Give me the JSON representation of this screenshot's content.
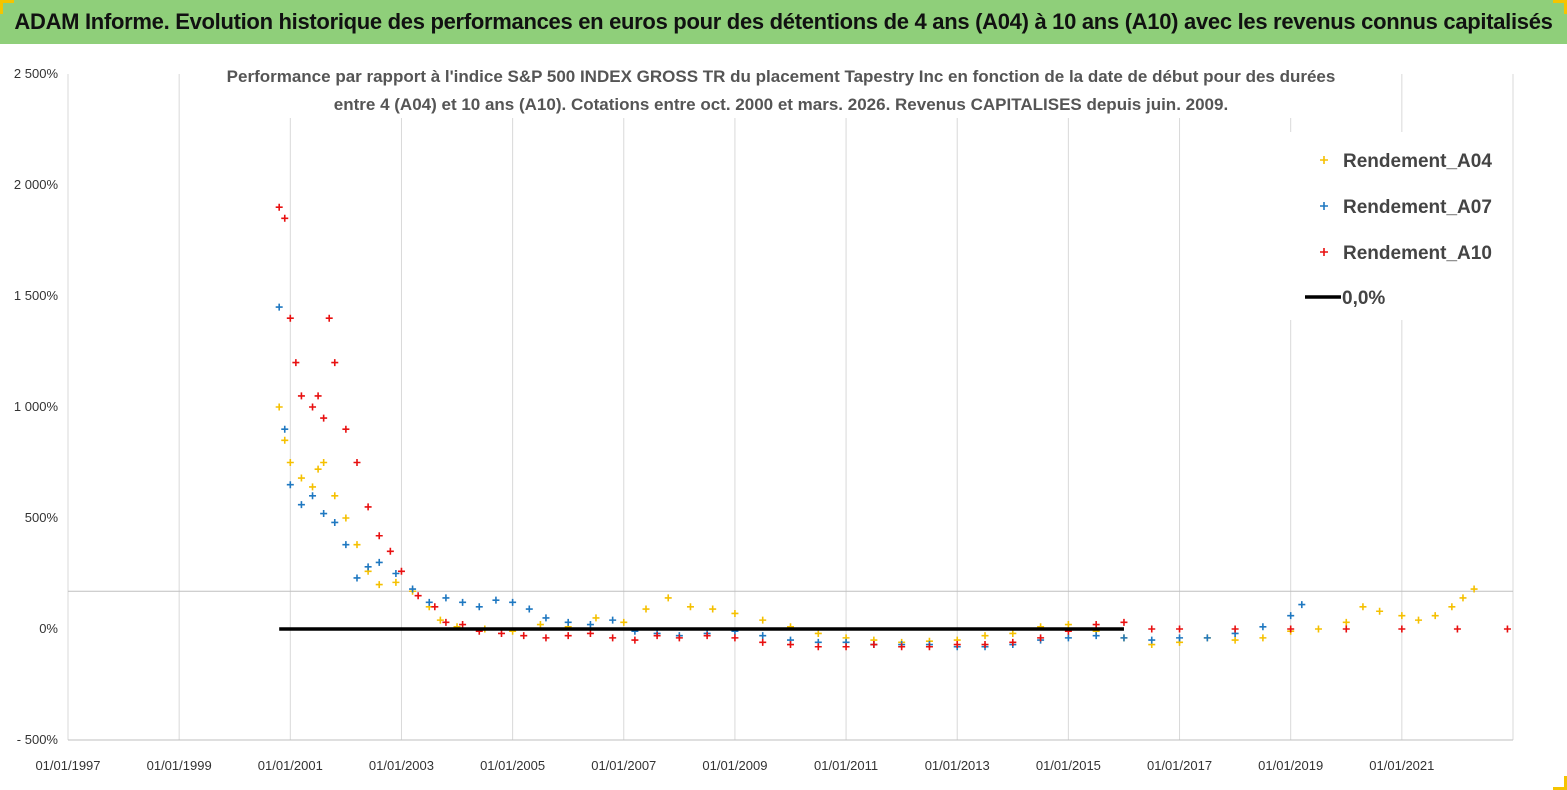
{
  "banner": {
    "title": "ADAM Informe. Evolution historique des performances en euros pour des détentions de 4 ans (A04) à 10 ans (A10) avec les revenus connus capitalisés"
  },
  "chart_data": {
    "type": "scatter",
    "title_lines": [
      "Performance par rapport à l'indice S&P 500 INDEX GROSS TR  du placement Tapestry Inc en fonction de la date de début pour des durées",
      "entre 4 (A04) et 10 ans (A10). Cotations entre oct. 2000 et mars. 2026. Revenus CAPITALISES depuis juin. 2009."
    ],
    "xlim": [
      1997.0,
      2023.0
    ],
    "ylim": [
      -500,
      2500
    ],
    "x_ticks": [
      {
        "x": 1997,
        "label": "01/01/1997"
      },
      {
        "x": 1999,
        "label": "01/01/1999"
      },
      {
        "x": 2001,
        "label": "01/01/2001"
      },
      {
        "x": 2003,
        "label": "01/01/2003"
      },
      {
        "x": 2005,
        "label": "01/01/2005"
      },
      {
        "x": 2007,
        "label": "01/01/2007"
      },
      {
        "x": 2009,
        "label": "01/01/2009"
      },
      {
        "x": 2011,
        "label": "01/01/2011"
      },
      {
        "x": 2013,
        "label": "01/01/2013"
      },
      {
        "x": 2015,
        "label": "01/01/2015"
      },
      {
        "x": 2017,
        "label": "01/01/2017"
      },
      {
        "x": 2019,
        "label": "01/01/2019"
      },
      {
        "x": 2021,
        "label": "01/01/2021"
      }
    ],
    "y_ticks": [
      {
        "y": 2500,
        "label": "2 500%"
      },
      {
        "y": 2000,
        "label": "2 000%"
      },
      {
        "y": 1500,
        "label": "1 500%"
      },
      {
        "y": 1000,
        "label": "1 000%"
      },
      {
        "y": 500,
        "label": "500%"
      },
      {
        "y": 0,
        "label": "0%"
      },
      {
        "y": -500,
        "label": "- 500%"
      }
    ],
    "grid": "vertical",
    "reference_line_y": 170,
    "legend_position": "top-right",
    "series": [
      {
        "name": "Rendement_A04",
        "color": "#f5c000",
        "marker": "plus",
        "points": [
          [
            2000.8,
            1000
          ],
          [
            2000.9,
            850
          ],
          [
            2001.0,
            750
          ],
          [
            2001.2,
            680
          ],
          [
            2001.4,
            640
          ],
          [
            2001.5,
            720
          ],
          [
            2001.6,
            750
          ],
          [
            2001.8,
            600
          ],
          [
            2002.0,
            500
          ],
          [
            2002.2,
            380
          ],
          [
            2002.4,
            260
          ],
          [
            2002.6,
            200
          ],
          [
            2002.9,
            210
          ],
          [
            2003.2,
            170
          ],
          [
            2003.5,
            100
          ],
          [
            2003.7,
            40
          ],
          [
            2004.0,
            10
          ],
          [
            2004.5,
            0
          ],
          [
            2005.0,
            -10
          ],
          [
            2005.5,
            20
          ],
          [
            2006.0,
            10
          ],
          [
            2006.5,
            50
          ],
          [
            2007.0,
            30
          ],
          [
            2007.4,
            90
          ],
          [
            2007.8,
            140
          ],
          [
            2008.2,
            100
          ],
          [
            2008.6,
            90
          ],
          [
            2009.0,
            70
          ],
          [
            2009.5,
            40
          ],
          [
            2010.0,
            10
          ],
          [
            2010.5,
            -20
          ],
          [
            2011.0,
            -40
          ],
          [
            2011.5,
            -50
          ],
          [
            2012.0,
            -60
          ],
          [
            2012.5,
            -55
          ],
          [
            2013.0,
            -50
          ],
          [
            2013.5,
            -30
          ],
          [
            2014.0,
            -20
          ],
          [
            2014.5,
            10
          ],
          [
            2015.0,
            20
          ],
          [
            2015.5,
            -10
          ],
          [
            2016.0,
            -40
          ],
          [
            2016.5,
            -70
          ],
          [
            2017.0,
            -60
          ],
          [
            2017.5,
            -40
          ],
          [
            2018.0,
            -50
          ],
          [
            2018.5,
            -40
          ],
          [
            2019.0,
            -10
          ],
          [
            2019.5,
            0
          ],
          [
            2020.0,
            30
          ],
          [
            2020.3,
            100
          ],
          [
            2020.6,
            80
          ],
          [
            2021.0,
            60
          ],
          [
            2021.3,
            40
          ],
          [
            2021.6,
            60
          ],
          [
            2021.9,
            100
          ],
          [
            2022.1,
            140
          ],
          [
            2022.3,
            180
          ]
        ]
      },
      {
        "name": "Rendement_A07",
        "color": "#1f78c1",
        "marker": "plus",
        "points": [
          [
            2000.8,
            1450
          ],
          [
            2000.9,
            900
          ],
          [
            2001.0,
            650
          ],
          [
            2001.2,
            560
          ],
          [
            2001.4,
            600
          ],
          [
            2001.6,
            520
          ],
          [
            2001.8,
            480
          ],
          [
            2002.0,
            380
          ],
          [
            2002.2,
            230
          ],
          [
            2002.4,
            280
          ],
          [
            2002.6,
            300
          ],
          [
            2002.9,
            250
          ],
          [
            2003.2,
            180
          ],
          [
            2003.5,
            120
          ],
          [
            2003.8,
            140
          ],
          [
            2004.1,
            120
          ],
          [
            2004.4,
            100
          ],
          [
            2004.7,
            130
          ],
          [
            2005.0,
            120
          ],
          [
            2005.3,
            90
          ],
          [
            2005.6,
            50
          ],
          [
            2006.0,
            30
          ],
          [
            2006.4,
            20
          ],
          [
            2006.8,
            40
          ],
          [
            2007.2,
            -10
          ],
          [
            2007.6,
            -20
          ],
          [
            2008.0,
            -30
          ],
          [
            2008.5,
            -20
          ],
          [
            2009.0,
            -10
          ],
          [
            2009.5,
            -30
          ],
          [
            2010.0,
            -50
          ],
          [
            2010.5,
            -60
          ],
          [
            2011.0,
            -60
          ],
          [
            2011.5,
            -70
          ],
          [
            2012.0,
            -70
          ],
          [
            2012.5,
            -70
          ],
          [
            2013.0,
            -80
          ],
          [
            2013.5,
            -80
          ],
          [
            2014.0,
            -70
          ],
          [
            2014.5,
            -50
          ],
          [
            2015.0,
            -40
          ],
          [
            2015.5,
            -30
          ],
          [
            2016.0,
            -40
          ],
          [
            2016.5,
            -50
          ],
          [
            2017.0,
            -40
          ],
          [
            2017.5,
            -40
          ],
          [
            2018.0,
            -20
          ],
          [
            2018.5,
            10
          ],
          [
            2019.0,
            60
          ],
          [
            2019.2,
            110
          ]
        ]
      },
      {
        "name": "Rendement_A10",
        "color": "#e81010",
        "marker": "plus",
        "points": [
          [
            2000.8,
            1900
          ],
          [
            2000.9,
            1850
          ],
          [
            2001.0,
            1400
          ],
          [
            2001.1,
            1200
          ],
          [
            2001.2,
            1050
          ],
          [
            2001.4,
            1000
          ],
          [
            2001.5,
            1050
          ],
          [
            2001.6,
            950
          ],
          [
            2001.7,
            1400
          ],
          [
            2001.8,
            1200
          ],
          [
            2002.0,
            900
          ],
          [
            2002.2,
            750
          ],
          [
            2002.4,
            550
          ],
          [
            2002.6,
            420
          ],
          [
            2002.8,
            350
          ],
          [
            2003.0,
            260
          ],
          [
            2003.3,
            150
          ],
          [
            2003.6,
            100
          ],
          [
            2003.8,
            30
          ],
          [
            2004.1,
            20
          ],
          [
            2004.4,
            -10
          ],
          [
            2004.8,
            -20
          ],
          [
            2005.2,
            -30
          ],
          [
            2005.6,
            -40
          ],
          [
            2006.0,
            -30
          ],
          [
            2006.4,
            -20
          ],
          [
            2006.8,
            -40
          ],
          [
            2007.2,
            -50
          ],
          [
            2007.6,
            -30
          ],
          [
            2008.0,
            -40
          ],
          [
            2008.5,
            -30
          ],
          [
            2009.0,
            -40
          ],
          [
            2009.5,
            -60
          ],
          [
            2010.0,
            -70
          ],
          [
            2010.5,
            -80
          ],
          [
            2011.0,
            -80
          ],
          [
            2011.5,
            -70
          ],
          [
            2012.0,
            -80
          ],
          [
            2012.5,
            -80
          ],
          [
            2013.0,
            -70
          ],
          [
            2013.5,
            -70
          ],
          [
            2014.0,
            -60
          ],
          [
            2014.5,
            -40
          ],
          [
            2015.0,
            -10
          ],
          [
            2015.5,
            20
          ],
          [
            2016.0,
            30
          ],
          [
            2016.5,
            0
          ],
          [
            2017.0,
            0
          ],
          [
            2018.0,
            0
          ],
          [
            2019.0,
            0
          ],
          [
            2020.0,
            0
          ],
          [
            2021.0,
            0
          ],
          [
            2022.0,
            0
          ],
          [
            2022.9,
            0
          ]
        ]
      },
      {
        "name": "0,0%",
        "color": "#000000",
        "marker": "line",
        "points": [
          [
            2000.8,
            0
          ],
          [
            2016.0,
            0
          ]
        ]
      }
    ]
  }
}
